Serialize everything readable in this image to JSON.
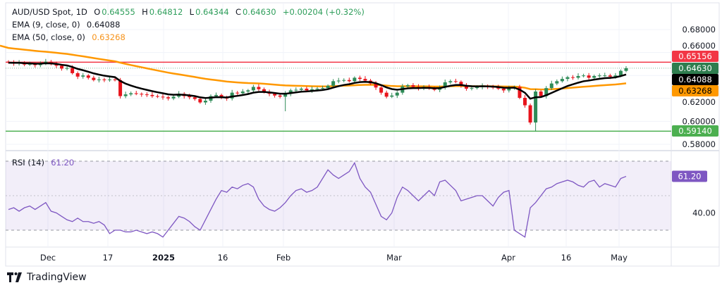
{
  "header": {
    "symbol": "AUD/USD Spot, 1D",
    "open_label": "O",
    "open": "0.64555",
    "high_label": "H",
    "high": "0.64812",
    "low_label": "L",
    "low": "0.64344",
    "close_label": "C",
    "close": "0.64630",
    "change": "+0.00204 (+0.32%)"
  },
  "indicators": {
    "ema9": {
      "label": "EMA (9, close, 0)",
      "value": "0.64088",
      "color": "#000000"
    },
    "ema50": {
      "label": "EMA (50, close, 0)",
      "value": "0.63268",
      "color": "#f7931a"
    },
    "rsi": {
      "label": "RSI (14)",
      "value": "61.20",
      "color": "#7e57c2"
    }
  },
  "price_axis": {
    "ticks": [
      "0.68000",
      "0.66000",
      "0.62000",
      "0.60000",
      "0.58000"
    ],
    "tags": [
      {
        "text": "0.65156",
        "bg": "#f23645",
        "fg": "#ffffff",
        "price": 0.65156
      },
      {
        "text": "0.64630",
        "bg": "#2e7d4f",
        "fg": "#ffffff",
        "price": 0.6463
      },
      {
        "text": "0.64088",
        "bg": "#000000",
        "fg": "#ffffff",
        "price": 0.64088
      },
      {
        "text": "0.63268",
        "bg": "#ff9800",
        "fg": "#000000",
        "price": 0.63268
      },
      {
        "text": "0.59140",
        "bg": "#4caf50",
        "fg": "#ffffff",
        "price": 0.5914
      }
    ]
  },
  "rsi_axis": {
    "ticks": [
      "40.00"
    ],
    "tag": "61.20"
  },
  "time_axis": {
    "ticks": [
      "Dec",
      "17",
      "2025",
      "16",
      "Feb",
      "Mar",
      "Apr",
      "16",
      "May"
    ]
  },
  "horizontal_lines": [
    {
      "price": 0.65156,
      "color": "#f23645"
    },
    {
      "price": 0.5914,
      "color": "#4caf50"
    }
  ],
  "colors": {
    "up": "#2e8b57",
    "down": "#e8141c"
  },
  "footer": {
    "brand": "TradingView"
  },
  "chart_data": {
    "type": "candlestick",
    "timeframe": "1D",
    "ylim": [
      0.575,
      0.685
    ],
    "first_date": "2024-11-20",
    "last_date": "2025-05-02",
    "closes": [
      0.6515,
      0.6505,
      0.651,
      0.6495,
      0.65,
      0.649,
      0.6505,
      0.652,
      0.65,
      0.6485,
      0.646,
      0.6465,
      0.642,
      0.639,
      0.64,
      0.638,
      0.636,
      0.6365,
      0.636,
      0.6365,
      0.636,
      0.622,
      0.6235,
      0.6245,
      0.624,
      0.6235,
      0.623,
      0.622,
      0.6215,
      0.621,
      0.62,
      0.6215,
      0.624,
      0.622,
      0.621,
      0.6195,
      0.6165,
      0.618,
      0.622,
      0.623,
      0.6205,
      0.62,
      0.625,
      0.6245,
      0.626,
      0.627,
      0.63,
      0.628,
      0.6255,
      0.624,
      0.6225,
      0.6215,
      0.624,
      0.627,
      0.6275,
      0.6285,
      0.627,
      0.628,
      0.6285,
      0.629,
      0.631,
      0.635,
      0.6355,
      0.636,
      0.635,
      0.638,
      0.637,
      0.6355,
      0.633,
      0.6295,
      0.625,
      0.6215,
      0.6225,
      0.625,
      0.6305,
      0.6315,
      0.63,
      0.629,
      0.63,
      0.629,
      0.6275,
      0.6295,
      0.634,
      0.635,
      0.6345,
      0.6315,
      0.6285,
      0.629,
      0.63,
      0.631,
      0.63,
      0.6295,
      0.6285,
      0.627,
      0.629,
      0.63,
      0.6205,
      0.614,
      0.599,
      0.626,
      0.622,
      0.629,
      0.633,
      0.635,
      0.637,
      0.6385,
      0.638,
      0.6395,
      0.64,
      0.638,
      0.6395,
      0.64,
      0.64,
      0.639,
      0.64,
      0.644,
      0.6463
    ],
    "notable_lows": {
      "2025-02-03": 0.6088,
      "2025-04-09": 0.5914
    },
    "rsi": [
      42,
      43,
      41,
      43,
      44,
      42,
      44,
      46,
      41,
      40,
      38,
      36,
      35,
      37,
      35,
      35,
      34,
      35,
      33,
      28,
      30,
      30,
      29,
      29,
      30,
      29,
      28,
      29,
      28,
      26,
      30,
      34,
      38,
      37,
      35,
      32,
      30,
      36,
      42,
      48,
      53,
      52,
      55,
      54,
      56,
      57,
      55,
      48,
      44,
      42,
      41,
      43,
      46,
      50,
      53,
      54,
      52,
      53,
      55,
      60,
      65,
      62,
      60,
      62,
      64,
      69,
      60,
      55,
      52,
      45,
      38,
      36,
      40,
      49,
      55,
      53,
      50,
      47,
      50,
      53,
      50,
      58,
      59,
      56,
      53,
      47,
      48,
      49,
      50,
      50,
      47,
      44,
      49,
      52,
      53,
      30,
      28,
      26,
      43,
      46,
      50,
      54,
      55,
      57,
      58,
      59,
      58,
      56,
      55,
      58,
      59,
      55,
      57,
      56,
      55,
      60,
      61.2
    ],
    "rsi_levels": [
      70,
      50,
      30
    ]
  }
}
